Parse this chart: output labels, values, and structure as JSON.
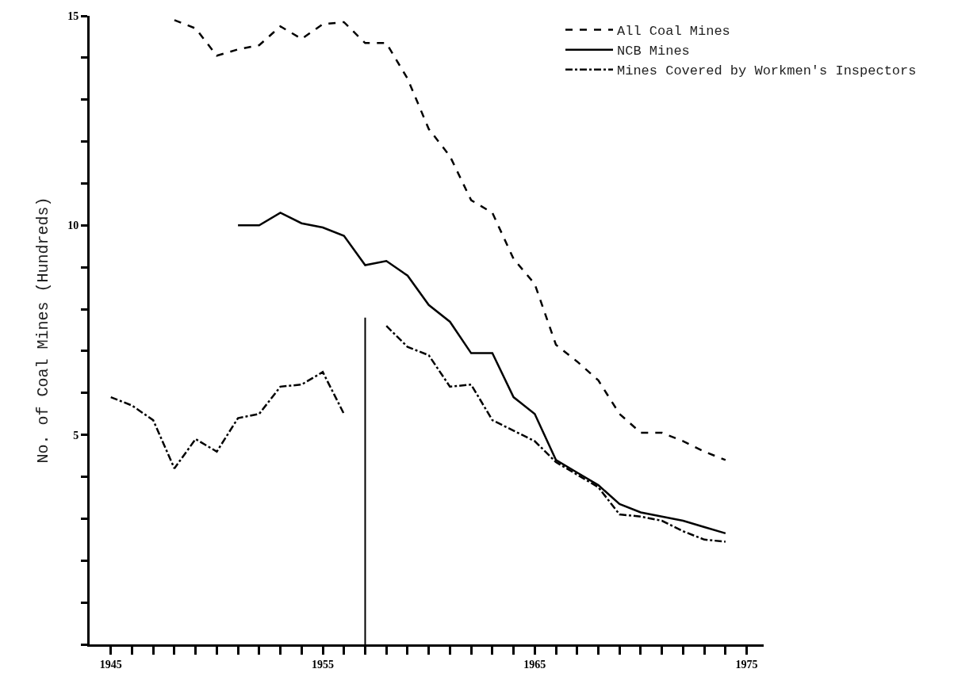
{
  "chart_data": {
    "type": "line",
    "ylabel": "No. of Coal Mines (Hundreds)",
    "xlim": [
      1944,
      1975.8
    ],
    "xticks": [
      {
        "value": 1945,
        "label": "1945"
      },
      {
        "value": 1946,
        "label": null
      },
      {
        "value": 1947,
        "label": null
      },
      {
        "value": 1948,
        "label": null
      },
      {
        "value": 1949,
        "label": null
      },
      {
        "value": 1950,
        "label": null
      },
      {
        "value": 1951,
        "label": null
      },
      {
        "value": 1952,
        "label": null
      },
      {
        "value": 1953,
        "label": null
      },
      {
        "value": 1954,
        "label": null
      },
      {
        "value": 1955,
        "label": "1955"
      },
      {
        "value": 1956,
        "label": null
      },
      {
        "value": 1957,
        "label": null
      },
      {
        "value": 1958,
        "label": null
      },
      {
        "value": 1959,
        "label": null
      },
      {
        "value": 1960,
        "label": null
      },
      {
        "value": 1961,
        "label": null
      },
      {
        "value": 1962,
        "label": null
      },
      {
        "value": 1963,
        "label": null
      },
      {
        "value": 1964,
        "label": null
      },
      {
        "value": 1965,
        "label": "1965"
      },
      {
        "value": 1966,
        "label": null
      },
      {
        "value": 1967,
        "label": null
      },
      {
        "value": 1968,
        "label": null
      },
      {
        "value": 1969,
        "label": null
      },
      {
        "value": 1970,
        "label": null
      },
      {
        "value": 1971,
        "label": null
      },
      {
        "value": 1972,
        "label": null
      },
      {
        "value": 1973,
        "label": null
      },
      {
        "value": 1974,
        "label": null
      },
      {
        "value": 1975,
        "label": "1975"
      }
    ],
    "ylim": [
      0,
      15
    ],
    "yticks": [
      {
        "value": 0,
        "label": null
      },
      {
        "value": 1,
        "label": null
      },
      {
        "value": 2,
        "label": null
      },
      {
        "value": 3,
        "label": null
      },
      {
        "value": 4,
        "label": null
      },
      5,
      {
        "value": 6,
        "label": null
      },
      {
        "value": 7,
        "label": null
      },
      {
        "value": 8,
        "label": null
      },
      {
        "value": 9,
        "label": null
      },
      10,
      {
        "value": 11,
        "label": null
      },
      {
        "value": 12,
        "label": null
      },
      {
        "value": 13,
        "label": null
      },
      {
        "value": 14,
        "label": null
      },
      15
    ],
    "grid": false,
    "legend": "top right",
    "marker": "none",
    "ref_lines": [
      {
        "axis": "x",
        "value": 1957,
        "color": "#000000",
        "line_style": "solid"
      }
    ],
    "series": [
      {
        "name": "All Coal Mines",
        "color": "#000000",
        "line_style": "dashed",
        "x": [
          1948,
          1949,
          1950,
          1951,
          1952,
          1953,
          1954,
          1955,
          1956,
          1957,
          1958,
          1959,
          1960,
          1961,
          1962,
          1963,
          1964,
          1965,
          1966,
          1967,
          1968,
          1969,
          1970,
          1971,
          1972,
          1973,
          1974
        ],
        "values": [
          14.9,
          14.7,
          14.05,
          14.2,
          14.3,
          14.75,
          14.45,
          14.8,
          14.85,
          14.35,
          14.35,
          13.5,
          12.3,
          11.65,
          10.6,
          10.3,
          9.2,
          8.6,
          7.15,
          6.75,
          6.3,
          5.5,
          5.05,
          5.05,
          4.85,
          4.6,
          4.4
        ]
      },
      {
        "name": "NCB Mines",
        "color": "#000000",
        "line_style": "solid",
        "x": [
          1951,
          1952,
          1953,
          1954,
          1955,
          1956,
          1957,
          1958,
          1959,
          1960,
          1961,
          1962,
          1963,
          1964,
          1965,
          1966,
          1967,
          1968,
          1969,
          1970,
          1971,
          1972,
          1973,
          1974
        ],
        "values": [
          10.0,
          10.0,
          10.3,
          10.05,
          9.95,
          9.75,
          9.05,
          9.15,
          8.8,
          8.1,
          7.7,
          6.95,
          6.95,
          5.9,
          5.5,
          4.4,
          4.1,
          3.8,
          3.35,
          3.15,
          3.05,
          2.95,
          2.8,
          2.65
        ]
      },
      {
        "name": "Mines Covered by Workmen's Inspectors",
        "color": "#000000",
        "line_style": "dashdot",
        "x": [
          1945,
          1946,
          1947,
          1948,
          1949,
          1950,
          1951,
          1952,
          1953,
          1954,
          1955,
          1956,
          1957,
          1958,
          1959,
          1960,
          1961,
          1962,
          1963,
          1964,
          1965,
          1966,
          1967,
          1968,
          1969,
          1970,
          1971,
          1972,
          1973,
          1974
        ],
        "values": [
          5.9,
          5.7,
          5.35,
          4.2,
          4.9,
          4.6,
          5.4,
          5.5,
          6.15,
          6.2,
          6.5,
          5.5,
          null,
          7.6,
          7.1,
          6.9,
          6.15,
          6.2,
          5.35,
          5.1,
          4.85,
          4.35,
          4.05,
          3.75,
          3.1,
          3.05,
          2.95,
          2.7,
          2.5,
          2.45
        ]
      }
    ]
  }
}
